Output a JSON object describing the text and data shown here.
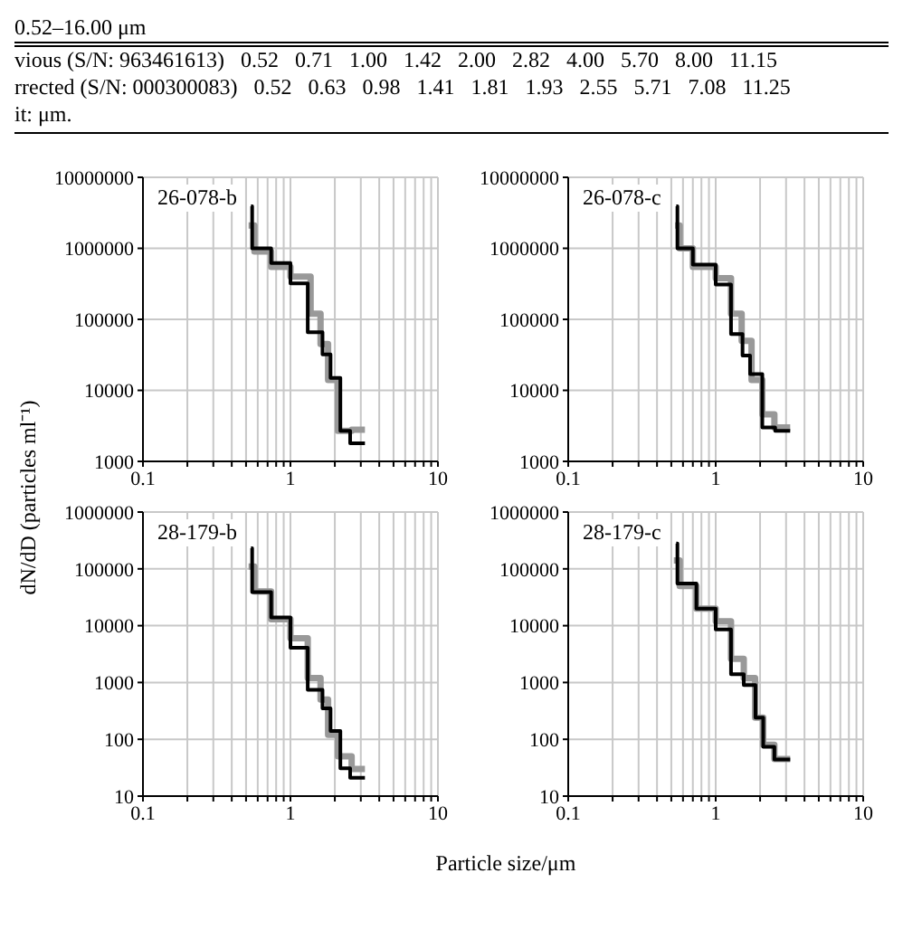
{
  "chart_data": [
    {
      "type": "other",
      "annotations": [
        "0.52–16.00 μm",
        "vious (S/N: 963461613)   0.52   0.71   1.00   1.42   2.00   2.82   4.00   5.70   8.00   11.15",
        "rrected (S/N: 000300083)   0.52   0.63   0.98   1.41   1.81   1.93   2.55   5.71   7.08   11.25",
        "it: μm."
      ]
    },
    {
      "type": "step",
      "title": "26-078-b",
      "ylabel": "dN/dD (particles ml⁻¹)",
      "xlabel": "Particle size/μm",
      "log": "xy",
      "grid": true,
      "marker": "none",
      "line_style": "solid",
      "xlim": [
        0.1,
        10
      ],
      "ylim": [
        1000,
        10000000
      ],
      "xticks": [
        0.1,
        {
          "value": 0.2,
          "label": null
        },
        {
          "value": 0.3,
          "label": null
        },
        {
          "value": 0.4,
          "label": null
        },
        {
          "value": 0.5,
          "label": null
        },
        {
          "value": 0.6,
          "label": null
        },
        {
          "value": 0.7,
          "label": null
        },
        {
          "value": 0.8,
          "label": null
        },
        {
          "value": 0.9,
          "label": null
        },
        1,
        {
          "value": 2,
          "label": null
        },
        {
          "value": 3,
          "label": null
        },
        {
          "value": 4,
          "label": null
        },
        {
          "value": 5,
          "label": null
        },
        {
          "value": 6,
          "label": null
        },
        {
          "value": 7,
          "label": null
        },
        {
          "value": 8,
          "label": null
        },
        {
          "value": 9,
          "label": null
        },
        10
      ],
      "yticks": [
        1000,
        10000,
        100000,
        1000000,
        10000000
      ],
      "series": [
        {
          "color": "#999999",
          "x": [
            0.52,
            0.57,
            0.74,
            1.0,
            1.37,
            1.6,
            1.8,
            2.1,
            2.6,
            3.2
          ],
          "values": [
            2100000,
            900000,
            550000,
            400000,
            120000,
            45000,
            14000,
            2700,
            2800,
            2800
          ]
        },
        {
          "color": "#000000",
          "x": [
            0.54,
            0.55,
            0.74,
            1.0,
            1.31,
            1.65,
            1.87,
            2.18,
            2.54,
            3.2
          ],
          "values": [
            3900000,
            1000000,
            620000,
            320000,
            66000,
            32000,
            15000,
            2700,
            1800,
            1800
          ]
        }
      ]
    },
    {
      "type": "step",
      "title": "26-078-c",
      "log": "xy",
      "grid": true,
      "marker": "none",
      "line_style": "solid",
      "xlim": [
        0.1,
        10
      ],
      "ylim": [
        1000,
        10000000
      ],
      "xticks": [
        0.1,
        {
          "value": 0.2,
          "label": null
        },
        {
          "value": 0.3,
          "label": null
        },
        {
          "value": 0.4,
          "label": null
        },
        {
          "value": 0.5,
          "label": null
        },
        {
          "value": 0.6,
          "label": null
        },
        {
          "value": 0.7,
          "label": null
        },
        {
          "value": 0.8,
          "label": null
        },
        {
          "value": 0.9,
          "label": null
        },
        1,
        {
          "value": 2,
          "label": null
        },
        {
          "value": 3,
          "label": null
        },
        {
          "value": 4,
          "label": null
        },
        {
          "value": 5,
          "label": null
        },
        {
          "value": 6,
          "label": null
        },
        {
          "value": 7,
          "label": null
        },
        {
          "value": 8,
          "label": null
        },
        {
          "value": 9,
          "label": null
        },
        10
      ],
      "yticks": [
        1000,
        10000,
        100000,
        1000000,
        10000000
      ],
      "series": [
        {
          "color": "#999999",
          "x": [
            0.53,
            0.57,
            0.7,
            1.0,
            1.27,
            1.5,
            1.75,
            2.07,
            2.5,
            3.2
          ],
          "values": [
            2100000,
            1000000,
            550000,
            380000,
            120000,
            50000,
            14000,
            4600,
            3000,
            3000
          ]
        },
        {
          "color": "#000000",
          "x": [
            0.54,
            0.55,
            0.7,
            1.0,
            1.27,
            1.52,
            1.71,
            2.07,
            2.53,
            3.2
          ],
          "values": [
            3900000,
            1000000,
            590000,
            310000,
            62000,
            31000,
            17000,
            3000,
            2700,
            2700
          ]
        }
      ]
    },
    {
      "type": "step",
      "title": "28-179-b",
      "log": "xy",
      "grid": true,
      "marker": "none",
      "line_style": "solid",
      "xlim": [
        0.1,
        10
      ],
      "ylim": [
        10,
        1000000
      ],
      "xticks": [
        0.1,
        {
          "value": 0.2,
          "label": null
        },
        {
          "value": 0.3,
          "label": null
        },
        {
          "value": 0.4,
          "label": null
        },
        {
          "value": 0.5,
          "label": null
        },
        {
          "value": 0.6,
          "label": null
        },
        {
          "value": 0.7,
          "label": null
        },
        {
          "value": 0.8,
          "label": null
        },
        {
          "value": 0.9,
          "label": null
        },
        1,
        {
          "value": 2,
          "label": null
        },
        {
          "value": 3,
          "label": null
        },
        {
          "value": 4,
          "label": null
        },
        {
          "value": 5,
          "label": null
        },
        {
          "value": 6,
          "label": null
        },
        {
          "value": 7,
          "label": null
        },
        {
          "value": 8,
          "label": null
        },
        {
          "value": 9,
          "label": null
        },
        10
      ],
      "yticks": [
        10,
        100,
        1000,
        10000,
        100000,
        1000000
      ],
      "series": [
        {
          "color": "#999999",
          "x": [
            0.52,
            0.57,
            0.74,
            1.0,
            1.31,
            1.6,
            1.8,
            2.1,
            2.6,
            3.2
          ],
          "values": [
            110000,
            40000,
            13000,
            6000,
            1200,
            500,
            120,
            50,
            30,
            30
          ]
        },
        {
          "color": "#000000",
          "x": [
            0.54,
            0.55,
            0.74,
            1.0,
            1.31,
            1.65,
            1.87,
            2.18,
            2.54,
            3.2
          ],
          "values": [
            230000,
            39000,
            14000,
            4100,
            740,
            350,
            140,
            31,
            21,
            21
          ]
        }
      ]
    },
    {
      "type": "step",
      "title": "28-179-c",
      "log": "xy",
      "grid": true,
      "marker": "none",
      "line_style": "solid",
      "xlim": [
        0.1,
        10
      ],
      "ylim": [
        10,
        1000000
      ],
      "xticks": [
        0.1,
        {
          "value": 0.2,
          "label": null
        },
        {
          "value": 0.3,
          "label": null
        },
        {
          "value": 0.4,
          "label": null
        },
        {
          "value": 0.5,
          "label": null
        },
        {
          "value": 0.6,
          "label": null
        },
        {
          "value": 0.7,
          "label": null
        },
        {
          "value": 0.8,
          "label": null
        },
        {
          "value": 0.9,
          "label": null
        },
        1,
        {
          "value": 2,
          "label": null
        },
        {
          "value": 3,
          "label": null
        },
        {
          "value": 4,
          "label": null
        },
        {
          "value": 5,
          "label": null
        },
        {
          "value": 6,
          "label": null
        },
        {
          "value": 7,
          "label": null
        },
        {
          "value": 8,
          "label": null
        },
        {
          "value": 9,
          "label": null
        },
        10
      ],
      "yticks": [
        10,
        100,
        1000,
        10000,
        100000,
        1000000
      ],
      "series": [
        {
          "color": "#999999",
          "x": [
            0.52,
            0.57,
            0.74,
            1.0,
            1.27,
            1.55,
            1.85,
            2.1,
            2.5,
            3.2
          ],
          "values": [
            140000,
            50000,
            20000,
            12000,
            2600,
            1200,
            240,
            80,
            45,
            45
          ]
        },
        {
          "color": "#000000",
          "x": [
            0.54,
            0.55,
            0.74,
            1.0,
            1.27,
            1.55,
            1.86,
            2.1,
            2.5,
            3.2
          ],
          "values": [
            280000,
            55000,
            20000,
            8600,
            1400,
            900,
            240,
            74,
            44,
            44
          ]
        }
      ]
    }
  ]
}
